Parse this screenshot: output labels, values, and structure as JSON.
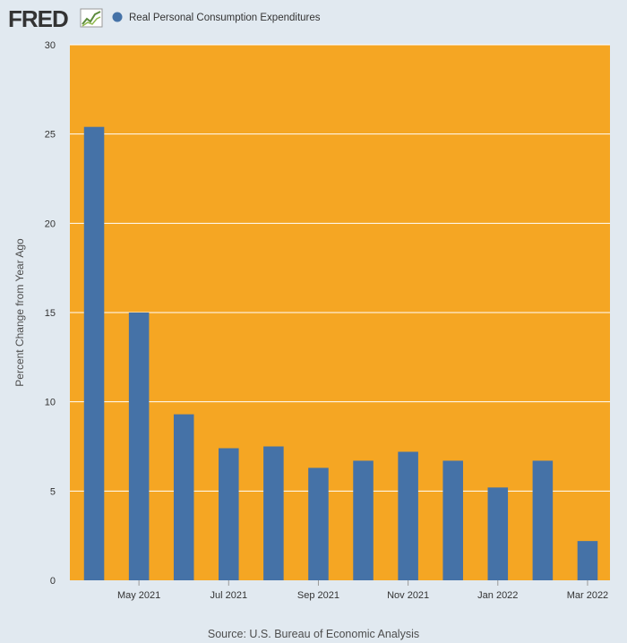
{
  "logo": {
    "text": "FRED",
    "icon": "chart-line-icon"
  },
  "legend": {
    "label": "Real Personal Consumption Expenditures",
    "color": "#4572a7"
  },
  "source": "Source: U.S. Bureau of Economic Analysis",
  "colors": {
    "plot_background": "#f5a623",
    "page_background": "#e1e9f0",
    "bar": "#4572a7",
    "grid": "#ffffff"
  },
  "chart_data": {
    "type": "bar",
    "title": "",
    "xlabel": "",
    "ylabel": "Percent Change from Year Ago",
    "ylim": [
      0,
      30
    ],
    "yticks": [
      0,
      5,
      10,
      15,
      20,
      25,
      30
    ],
    "grid": true,
    "legend_placement": "top-left",
    "categories": [
      "Apr 2021",
      "May 2021",
      "Jun 2021",
      "Jul 2021",
      "Aug 2021",
      "Sep 2021",
      "Oct 2021",
      "Nov 2021",
      "Dec 2021",
      "Jan 2022",
      "Feb 2022",
      "Mar 2022"
    ],
    "xtick_labels": [
      "May 2021",
      "Jul 2021",
      "Sep 2021",
      "Nov 2021",
      "Jan 2022",
      "Mar 2022"
    ],
    "series": [
      {
        "name": "Real Personal Consumption Expenditures",
        "values": [
          25.4,
          15.0,
          9.3,
          7.4,
          7.5,
          6.3,
          6.7,
          7.2,
          6.7,
          5.2,
          6.7,
          2.2
        ]
      }
    ]
  }
}
